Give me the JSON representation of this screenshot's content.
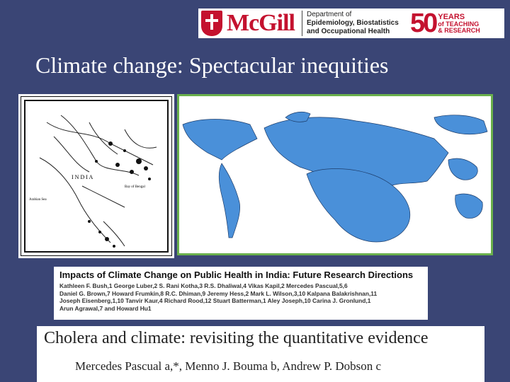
{
  "banner": {
    "logo_word": "McGill",
    "department_lines": [
      "Department of",
      "Epidemiology, Biostatistics",
      "and Occupational Health"
    ],
    "anniversary_number": "50",
    "anniversary_lines": [
      "YEARS",
      "of TEACHING",
      "& RESEARCH"
    ],
    "brand_color": "#c4122f"
  },
  "slide": {
    "title": "Climate change: Spectacular inequities",
    "background_color": "#3a4575"
  },
  "india_map": {
    "labels": [
      "I N D I A",
      "Arabian Sea",
      "Bay of Bengal"
    ]
  },
  "world_map": {
    "border_color": "#6ab04c",
    "land_color": "#4a90d9"
  },
  "paper1": {
    "title": "Impacts of Climate Change on Public Health in India: Future Research Directions",
    "author_lines": [
      "Kathleen F. Bush,1 George Luber,2 S. Rani Kotha,3 R.S. Dhaliwal,4 Vikas Kapil,2 Mercedes Pascual,5,6",
      "Daniel G. Brown,7 Howard Frumkin,8 R.C. Dhiman,9 Jeremy Hess,2 Mark L. Wilson,3,10 Kalpana Balakrishnan,11",
      "Joseph Eisenberg,1,10 Tanvir Kaur,4 Richard Rood,12 Stuart Batterman,1 Aley Joseph,10 Carina J. Gronlund,1",
      "Arun Agrawal,7 and Howard Hu1"
    ]
  },
  "paper2": {
    "title": "Cholera and climate: revisiting the quantitative evidence",
    "authors": "Mercedes Pascual a,*, Menno J. Bouma b, Andrew P. Dobson c"
  }
}
